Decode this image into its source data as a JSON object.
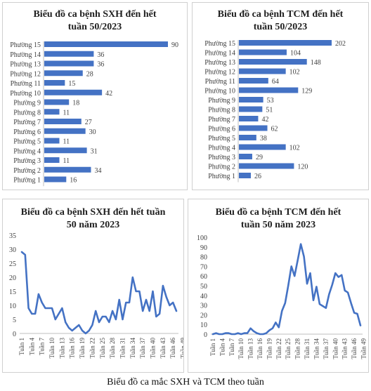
{
  "caption": "Biểu đồ ca mắc SXH và TCM theo tuần",
  "chart_data": [
    {
      "type": "bar",
      "orientation": "horizontal",
      "title_line1": "Biểu đồ ca bệnh SXH đến hết",
      "title_line2": "tuần 50/2023",
      "categories": [
        "Phường 15",
        "Phường 14",
        "Phường 13",
        "Phường 12",
        "Phường 11",
        "Phường 10",
        "Phường 9",
        "Phường 8",
        "Phường 7",
        "Phường 6",
        "Phường 5",
        "Phường 4",
        "Phường 3",
        "Phường 2",
        "Phường 1"
      ],
      "values": [
        90,
        36,
        36,
        28,
        15,
        42,
        18,
        11,
        27,
        30,
        11,
        31,
        11,
        34,
        16
      ],
      "color": "#4472c4"
    },
    {
      "type": "bar",
      "orientation": "horizontal",
      "title_line1": "Biểu đồ ca bệnh TCM đến hết",
      "title_line2": "tuần 50/2023",
      "categories": [
        "Phường 15",
        "Phường 14",
        "Phường 13",
        "Phường 12",
        "Phường 11",
        "Phường 10",
        "Phường 9",
        "Phường 8",
        "Phường 7",
        "Phường 6",
        "Phường 5",
        "Phường 4",
        "Phường 3",
        "Phường 2",
        "Phường 1"
      ],
      "values": [
        202,
        104,
        148,
        102,
        64,
        129,
        53,
        51,
        42,
        62,
        38,
        102,
        29,
        120,
        26
      ],
      "color": "#4472c4"
    },
    {
      "type": "line",
      "title_line1": "Biểu đồ ca bệnh SXH đến hết tuần",
      "title_line2": "50 năm 2023",
      "x_tick_labels": [
        "Tuần 1",
        "Tuần 4",
        "Tuần 7",
        "Tuần 10",
        "Tuần 13",
        "Tuần 16",
        "Tuần 19",
        "Tuần 22",
        "Tuần 25",
        "Tuần 28",
        "Tuần 31",
        "Tuần 34",
        "Tuần 37",
        "Tuần 40",
        "Tuần 43",
        "Tuần 46",
        "Tuần 49"
      ],
      "y_ticks": [
        0,
        5,
        10,
        15,
        20,
        25,
        30,
        35
      ],
      "ylim": [
        0,
        35
      ],
      "values": [
        29,
        28,
        9,
        7,
        7,
        14,
        11,
        9,
        9,
        9,
        5,
        7,
        9,
        4,
        2,
        1,
        2,
        3,
        1,
        0,
        1,
        3,
        8,
        4,
        6,
        6,
        4,
        8,
        5,
        12,
        5,
        11,
        11,
        20,
        15,
        15,
        8,
        12,
        8,
        15,
        6,
        7,
        17,
        13,
        10,
        11,
        8
      ],
      "color": "#4472c4"
    },
    {
      "type": "line",
      "title_line1": "Biểu đồ ca bệnh TCM đến hết",
      "title_line2": "tuần 50 năm 2023",
      "x_tick_labels": [
        "Tuần 1",
        "Tuần 4",
        "Tuần 7",
        "Tuần 10",
        "Tuần 13",
        "Tuần 16",
        "Tuần 19",
        "Tuần 22",
        "Tuần 25",
        "Tuần 28",
        "Tuần 31",
        "Tuần 34",
        "Tuần 37",
        "Tuần 40",
        "Tuần 43",
        "Tuần 46",
        "Tuần 49"
      ],
      "y_ticks": [
        0,
        10,
        20,
        30,
        40,
        50,
        60,
        70,
        80,
        90,
        100
      ],
      "ylim": [
        0,
        100
      ],
      "values": [
        0,
        1,
        0,
        0,
        1,
        1,
        0,
        0,
        1,
        0,
        1,
        1,
        6,
        3,
        1,
        0,
        0,
        1,
        4,
        6,
        12,
        7,
        24,
        32,
        50,
        70,
        60,
        76,
        93,
        80,
        52,
        63,
        35,
        49,
        31,
        29,
        27,
        41,
        51,
        63,
        59,
        61,
        45,
        43,
        32,
        22,
        21,
        9
      ],
      "color": "#4472c4"
    }
  ]
}
